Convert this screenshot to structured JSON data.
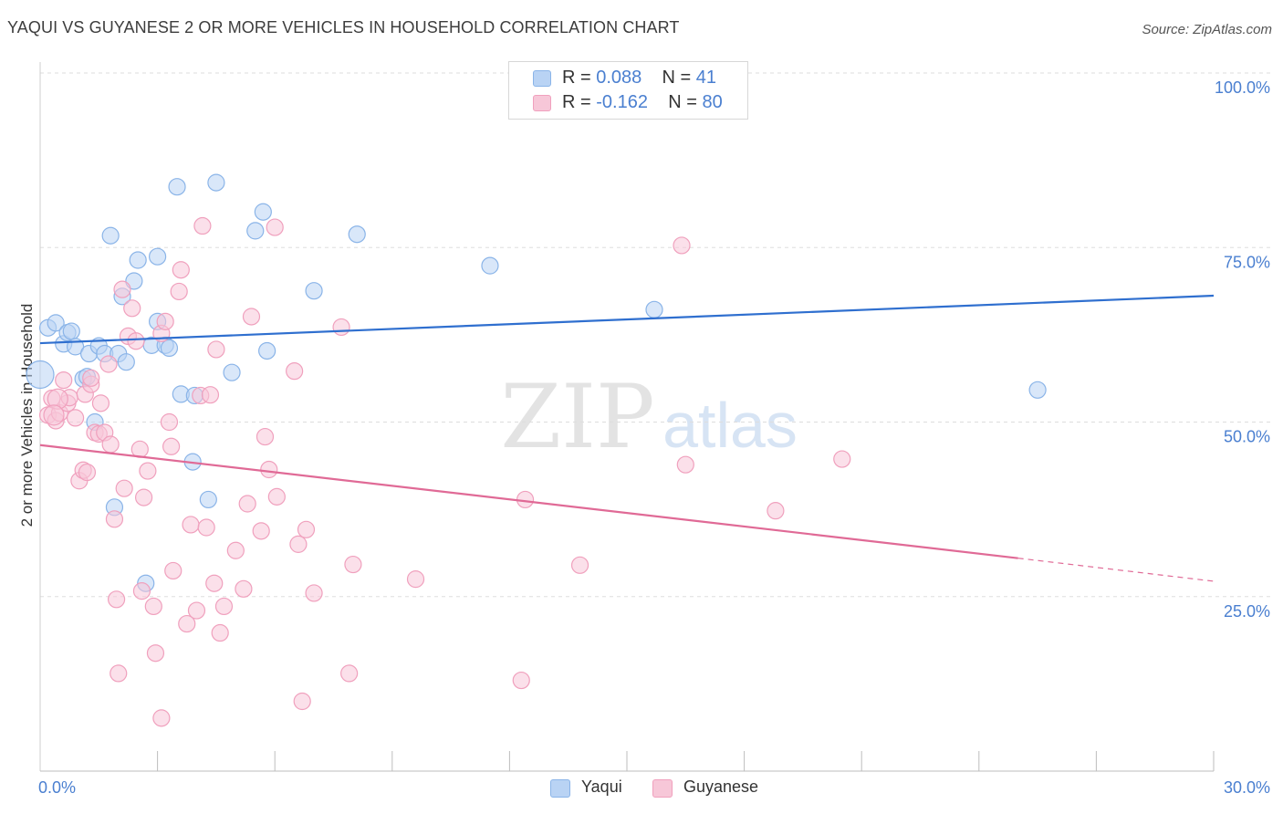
{
  "chart_data": {
    "type": "scatter",
    "title": "YAQUI VS GUYANESE 2 OR MORE VEHICLES IN HOUSEHOLD CORRELATION CHART",
    "source": "Source: ZipAtlas.com",
    "ylabel": "2 or more Vehicles in Household",
    "xlim": [
      0,
      30
    ],
    "ylim": [
      0,
      100
    ],
    "x_tick_labels": [
      "0.0%",
      "30.0%"
    ],
    "y_tick_labels": [
      {
        "value": 25,
        "label": "25.0%"
      },
      {
        "value": 50,
        "label": "50.0%"
      },
      {
        "value": 75,
        "label": "75.0%"
      },
      {
        "value": 100,
        "label": "100.0%"
      }
    ],
    "watermark": {
      "zip": "ZIP",
      "atlas": "atlas"
    },
    "series": [
      {
        "name": "Yaqui",
        "color": "#8ab4e8",
        "fill": "#b9d3f4",
        "line_color": "#2f6fcf",
        "R": "0.088",
        "N": "41",
        "trend": {
          "x0": 0,
          "y0": 61.3,
          "x1": 30,
          "y1": 68.1
        },
        "points": [
          [
            0.2,
            63.5
          ],
          [
            0.4,
            64.2
          ],
          [
            0.6,
            61.2
          ],
          [
            0.7,
            62.8
          ],
          [
            0.8,
            63.0
          ],
          [
            0.9,
            60.8
          ],
          [
            1.1,
            56.2
          ],
          [
            1.2,
            56.5
          ],
          [
            1.25,
            59.8
          ],
          [
            1.4,
            50.0
          ],
          [
            1.5,
            60.9
          ],
          [
            1.65,
            59.8
          ],
          [
            1.8,
            76.7
          ],
          [
            1.9,
            37.8
          ],
          [
            2.0,
            59.8
          ],
          [
            2.1,
            68.0
          ],
          [
            2.2,
            58.6
          ],
          [
            2.4,
            70.2
          ],
          [
            2.5,
            73.2
          ],
          [
            2.7,
            26.9
          ],
          [
            2.85,
            61.0
          ],
          [
            3.0,
            73.7
          ],
          [
            3.0,
            64.4
          ],
          [
            3.2,
            61.0
          ],
          [
            3.3,
            60.6
          ],
          [
            3.5,
            83.7
          ],
          [
            3.6,
            54.0
          ],
          [
            3.9,
            44.3
          ],
          [
            3.95,
            53.8
          ],
          [
            4.3,
            38.9
          ],
          [
            4.5,
            84.3
          ],
          [
            4.9,
            57.1
          ],
          [
            5.5,
            77.4
          ],
          [
            5.7,
            80.1
          ],
          [
            5.8,
            60.2
          ],
          [
            7.0,
            68.8
          ],
          [
            8.1,
            76.9
          ],
          [
            11.5,
            72.4
          ],
          [
            15.7,
            66.1
          ],
          [
            25.5,
            54.6
          ],
          [
            0.0,
            56.8
          ]
        ],
        "point_radius": [
          9,
          9,
          9,
          9,
          9,
          9,
          9,
          9,
          9,
          9,
          9,
          9,
          9,
          9,
          9,
          9,
          9,
          9,
          9,
          9,
          9,
          9,
          9,
          9,
          9,
          9,
          9,
          9,
          9,
          9,
          9,
          9,
          9,
          9,
          9,
          9,
          9,
          9,
          9,
          9,
          15
        ]
      },
      {
        "name": "Guyanese",
        "color": "#f0a0bd",
        "fill": "#f7c7d8",
        "line_color": "#e06a96",
        "R": "-0.162",
        "N": "80",
        "trend": {
          "x0": 0,
          "y0": 46.7,
          "x1": 25,
          "y1": 30.5,
          "x_dash_end": 30,
          "y_dash_end": 27.2
        },
        "points": [
          [
            0.2,
            51.0
          ],
          [
            0.3,
            53.4
          ],
          [
            0.4,
            50.2
          ],
          [
            0.5,
            51.3
          ],
          [
            0.6,
            56.0
          ],
          [
            0.7,
            52.7
          ],
          [
            0.75,
            53.5
          ],
          [
            0.9,
            50.6
          ],
          [
            1.0,
            41.6
          ],
          [
            1.1,
            43.1
          ],
          [
            1.15,
            54.0
          ],
          [
            1.2,
            42.8
          ],
          [
            1.3,
            55.4
          ],
          [
            1.4,
            48.5
          ],
          [
            1.5,
            48.3
          ],
          [
            1.55,
            52.7
          ],
          [
            1.65,
            48.5
          ],
          [
            1.75,
            58.3
          ],
          [
            1.8,
            46.8
          ],
          [
            1.9,
            36.1
          ],
          [
            1.95,
            24.6
          ],
          [
            2.0,
            14.0
          ],
          [
            2.1,
            69.0
          ],
          [
            2.15,
            40.5
          ],
          [
            2.25,
            62.3
          ],
          [
            2.35,
            66.3
          ],
          [
            2.45,
            61.6
          ],
          [
            2.55,
            46.1
          ],
          [
            2.6,
            25.8
          ],
          [
            2.65,
            39.2
          ],
          [
            2.75,
            43.0
          ],
          [
            2.9,
            23.6
          ],
          [
            2.95,
            16.9
          ],
          [
            3.1,
            62.7
          ],
          [
            3.1,
            7.6
          ],
          [
            3.2,
            64.4
          ],
          [
            3.3,
            50.0
          ],
          [
            3.35,
            46.5
          ],
          [
            3.4,
            28.7
          ],
          [
            3.55,
            68.7
          ],
          [
            3.6,
            71.8
          ],
          [
            3.75,
            21.1
          ],
          [
            3.85,
            35.3
          ],
          [
            4.0,
            23.0
          ],
          [
            4.1,
            53.8
          ],
          [
            4.15,
            78.1
          ],
          [
            4.25,
            34.9
          ],
          [
            4.35,
            53.9
          ],
          [
            4.45,
            26.9
          ],
          [
            4.5,
            60.4
          ],
          [
            4.6,
            19.8
          ],
          [
            4.7,
            23.6
          ],
          [
            5.0,
            31.6
          ],
          [
            5.2,
            26.1
          ],
          [
            5.3,
            38.3
          ],
          [
            5.4,
            65.1
          ],
          [
            5.65,
            34.4
          ],
          [
            5.75,
            47.9
          ],
          [
            5.85,
            43.2
          ],
          [
            6.0,
            77.9
          ],
          [
            6.05,
            39.3
          ],
          [
            6.5,
            57.3
          ],
          [
            6.6,
            32.5
          ],
          [
            6.8,
            34.6
          ],
          [
            6.7,
            10.0
          ],
          [
            7.0,
            25.5
          ],
          [
            7.7,
            63.6
          ],
          [
            7.9,
            14.0
          ],
          [
            8.0,
            29.6
          ],
          [
            9.6,
            27.5
          ],
          [
            12.3,
            13.0
          ],
          [
            12.4,
            38.9
          ],
          [
            13.8,
            29.5
          ],
          [
            16.4,
            75.3
          ],
          [
            16.5,
            43.9
          ],
          [
            18.8,
            37.3
          ],
          [
            20.5,
            44.7
          ],
          [
            0.45,
            53.3
          ],
          [
            1.3,
            56.3
          ],
          [
            0.35,
            51.0
          ]
        ],
        "point_radius": [
          9,
          9,
          9,
          9,
          9,
          9,
          9,
          9,
          9,
          9,
          9,
          9,
          9,
          9,
          9,
          9,
          9,
          9,
          9,
          9,
          9,
          9,
          9,
          9,
          9,
          9,
          9,
          9,
          9,
          9,
          9,
          9,
          9,
          9,
          9,
          9,
          9,
          9,
          9,
          9,
          9,
          9,
          9,
          9,
          9,
          9,
          9,
          9,
          9,
          9,
          9,
          9,
          9,
          9,
          9,
          9,
          9,
          9,
          9,
          9,
          9,
          9,
          9,
          9,
          9,
          9,
          9,
          9,
          9,
          9,
          9,
          9,
          9,
          9,
          9,
          9,
          9,
          11,
          9,
          11
        ]
      }
    ],
    "legend": {
      "r_label": "R =",
      "n_label": "N ="
    }
  }
}
